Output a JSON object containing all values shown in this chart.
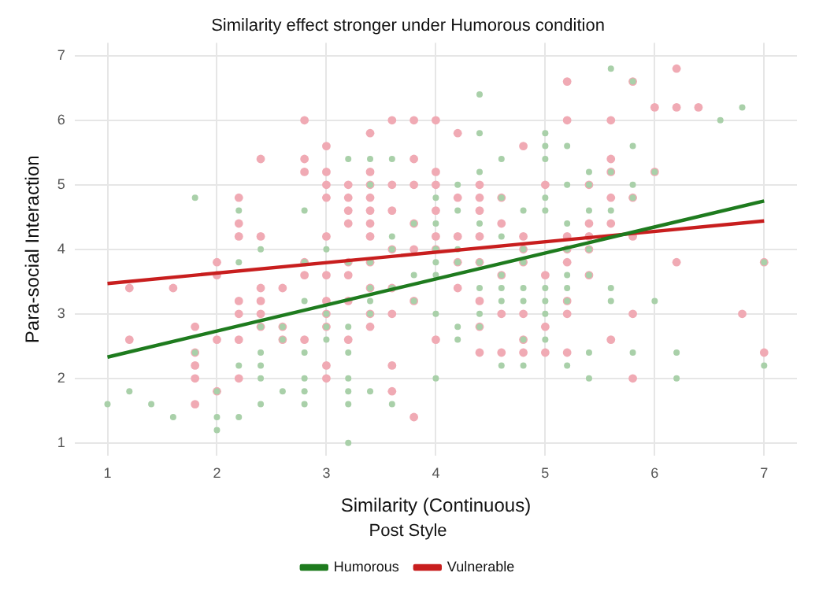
{
  "chart_data": {
    "type": "scatter",
    "title": "Similarity effect stronger under Humorous condition",
    "xlabel": "Similarity (Continuous)",
    "ylabel": "Para-social Interaction",
    "legend_title": "Post Style",
    "legend": "bottom",
    "grid": true,
    "xlim": [
      0.7,
      7.3
    ],
    "ylim": [
      0.8,
      7.2
    ],
    "xticks": [
      1,
      2,
      3,
      4,
      5,
      6,
      7
    ],
    "yticks": [
      1,
      2,
      3,
      4,
      5,
      6,
      7
    ],
    "series": [
      {
        "marker": "circle",
        "color": "#a9d0a9",
        "x": [
          1.8,
          2.2,
          2.8,
          2.4,
          3.0,
          2.2,
          2.8,
          2.8,
          3.0,
          2.4,
          2.6,
          3.0,
          2.6,
          3.0,
          1.8,
          2.4,
          2.8,
          2.2,
          2.4,
          2.4,
          2.8,
          1.2,
          2.0,
          2.6,
          2.8,
          1.0,
          1.4,
          2.4,
          2.8,
          1.6,
          2.0,
          2.2,
          2.0,
          4.4,
          4.4,
          5.0,
          5.0,
          3.2,
          3.4,
          3.6,
          4.6,
          5.0,
          4.4,
          3.4,
          4.2,
          4.0,
          4.6,
          5.0,
          4.2,
          4.8,
          5.0,
          3.8,
          4.0,
          4.4,
          3.6,
          4.6,
          3.6,
          4.0,
          4.2,
          4.8,
          3.2,
          3.4,
          4.0,
          4.2,
          4.4,
          4.8,
          3.8,
          4.0,
          4.6,
          3.4,
          3.6,
          4.4,
          4.6,
          4.8,
          5.0,
          3.4,
          3.8,
          4.6,
          4.8,
          5.0,
          3.4,
          4.0,
          4.4,
          5.0,
          3.2,
          4.2,
          4.4,
          4.2,
          4.8,
          5.0,
          3.2,
          4.6,
          4.8,
          3.2,
          4.0,
          3.2,
          3.4,
          3.2,
          3.6,
          3.2,
          5.6,
          5.8,
          6.8,
          6.6,
          5.2,
          5.8,
          5.4,
          5.6,
          6.0,
          5.2,
          5.4,
          5.8,
          5.8,
          5.4,
          5.6,
          5.2,
          5.2,
          5.4,
          7.0,
          5.2,
          5.4,
          5.2,
          5.6,
          5.2,
          5.6,
          6.0,
          5.4,
          5.8,
          6.2,
          5.2,
          7.0,
          5.4,
          6.2
        ],
        "values": [
          4.8,
          4.6,
          4.6,
          4.0,
          4.0,
          3.8,
          3.8,
          3.2,
          3.0,
          2.8,
          2.8,
          2.8,
          2.6,
          2.6,
          2.4,
          2.4,
          2.4,
          2.2,
          2.2,
          2.0,
          2.0,
          1.8,
          1.8,
          1.8,
          1.8,
          1.6,
          1.6,
          1.6,
          1.6,
          1.4,
          1.4,
          1.4,
          1.2,
          6.4,
          5.8,
          5.8,
          5.6,
          5.4,
          5.4,
          5.4,
          5.4,
          5.4,
          5.2,
          5.0,
          5.0,
          4.8,
          4.8,
          4.8,
          4.6,
          4.6,
          4.6,
          4.4,
          4.4,
          4.4,
          4.2,
          4.2,
          4.0,
          4.0,
          4.0,
          4.0,
          3.8,
          3.8,
          3.8,
          3.8,
          3.8,
          3.8,
          3.6,
          3.6,
          3.6,
          3.4,
          3.4,
          3.4,
          3.4,
          3.4,
          3.4,
          3.2,
          3.2,
          3.2,
          3.2,
          3.2,
          3.0,
          3.0,
          3.0,
          3.0,
          2.8,
          2.8,
          2.8,
          2.6,
          2.6,
          2.6,
          2.4,
          2.2,
          2.2,
          2.0,
          2.0,
          1.8,
          1.8,
          1.6,
          1.6,
          1.0,
          6.8,
          6.6,
          6.2,
          6.0,
          5.6,
          5.6,
          5.2,
          5.2,
          5.2,
          5.0,
          5.0,
          5.0,
          4.8,
          4.6,
          4.6,
          4.4,
          4.0,
          4.0,
          3.8,
          3.6,
          3.6,
          3.4,
          3.4,
          3.2,
          3.2,
          3.2,
          2.4,
          2.4,
          2.4,
          2.2,
          2.2,
          2.0,
          2.0
        ]
      },
      {
        "marker": "circle",
        "color": "#f0aab4",
        "x": [
          2.8,
          3.0,
          2.4,
          2.8,
          2.8,
          3.0,
          3.0,
          2.2,
          3.0,
          2.2,
          2.2,
          2.4,
          3.0,
          2.0,
          2.8,
          2.0,
          2.8,
          3.0,
          1.2,
          1.6,
          2.4,
          2.6,
          2.2,
          2.4,
          3.0,
          2.2,
          2.4,
          3.0,
          1.8,
          2.4,
          2.6,
          3.0,
          1.2,
          2.0,
          2.2,
          2.6,
          2.8,
          1.8,
          1.8,
          3.0,
          1.8,
          2.2,
          3.0,
          2.0,
          1.8,
          3.6,
          3.8,
          4.0,
          3.4,
          4.2,
          4.8,
          3.8,
          3.4,
          4.0,
          3.2,
          3.4,
          3.6,
          3.8,
          4.0,
          4.4,
          5.0,
          3.2,
          3.4,
          4.2,
          4.4,
          4.6,
          3.2,
          3.4,
          3.6,
          4.0,
          4.4,
          3.2,
          3.4,
          3.8,
          4.6,
          3.4,
          4.0,
          4.2,
          4.4,
          4.8,
          3.6,
          3.8,
          4.0,
          4.8,
          3.2,
          3.4,
          4.2,
          4.4,
          4.8,
          3.2,
          4.6,
          5.0,
          3.4,
          3.6,
          4.2,
          3.2,
          3.8,
          4.4,
          3.4,
          3.6,
          4.6,
          4.8,
          3.4,
          4.4,
          5.0,
          3.2,
          4.0,
          4.8,
          4.4,
          4.6,
          4.8,
          5.0,
          3.6,
          3.6,
          3.8,
          6.2,
          5.2,
          5.8,
          6.0,
          6.2,
          6.4,
          5.2,
          5.6,
          5.6,
          5.6,
          6.0,
          5.4,
          5.6,
          5.8,
          5.4,
          5.6,
          5.2,
          5.4,
          5.8,
          5.2,
          5.4,
          5.2,
          6.2,
          7.0,
          5.4,
          5.2,
          5.2,
          5.8,
          6.8,
          5.6,
          5.2,
          7.0,
          5.8
        ],
        "values": [
          6.0,
          5.6,
          5.4,
          5.4,
          5.2,
          5.2,
          5.0,
          4.8,
          4.8,
          4.4,
          4.2,
          4.2,
          4.2,
          3.8,
          3.8,
          3.6,
          3.6,
          3.6,
          3.4,
          3.4,
          3.4,
          3.4,
          3.2,
          3.2,
          3.2,
          3.0,
          3.0,
          3.0,
          2.8,
          2.8,
          2.8,
          2.8,
          2.6,
          2.6,
          2.6,
          2.6,
          2.6,
          2.4,
          2.2,
          2.2,
          2.0,
          2.0,
          2.0,
          1.8,
          1.6,
          6.0,
          6.0,
          6.0,
          5.8,
          5.8,
          5.6,
          5.4,
          5.2,
          5.2,
          5.0,
          5.0,
          5.0,
          5.0,
          5.0,
          5.0,
          5.0,
          4.8,
          4.8,
          4.8,
          4.8,
          4.8,
          4.6,
          4.6,
          4.6,
          4.6,
          4.6,
          4.4,
          4.4,
          4.4,
          4.4,
          4.2,
          4.2,
          4.2,
          4.2,
          4.2,
          4.0,
          4.0,
          4.0,
          4.0,
          3.8,
          3.8,
          3.8,
          3.8,
          3.8,
          3.6,
          3.6,
          3.6,
          3.4,
          3.4,
          3.4,
          3.2,
          3.2,
          3.2,
          3.0,
          3.0,
          3.0,
          3.0,
          2.8,
          2.8,
          2.8,
          2.6,
          2.6,
          2.6,
          2.4,
          2.4,
          2.4,
          2.4,
          2.2,
          1.8,
          1.4,
          6.8,
          6.6,
          6.6,
          6.2,
          6.2,
          6.2,
          6.0,
          6.0,
          5.4,
          5.2,
          5.2,
          5.0,
          4.8,
          4.8,
          4.4,
          4.4,
          4.2,
          4.2,
          4.2,
          4.0,
          4.0,
          3.8,
          3.8,
          3.8,
          3.6,
          3.2,
          3.0,
          3.0,
          3.0,
          2.6,
          2.4,
          2.4,
          2.0
        ]
      },
      {
        "type": "line",
        "marker": "none",
        "name": "Humorous",
        "color": "#1e7b1e",
        "x": [
          1,
          7
        ],
        "values": [
          2.33,
          4.75
        ]
      },
      {
        "type": "line",
        "marker": "none",
        "name": "Vulnerable",
        "color": "#c81e1e",
        "x": [
          1,
          7
        ],
        "values": [
          3.47,
          4.44
        ]
      }
    ]
  }
}
